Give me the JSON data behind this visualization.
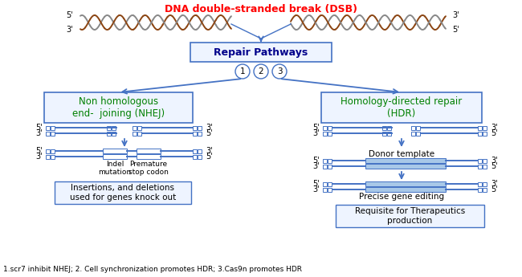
{
  "title": "DNA double-stranded break (DSB)",
  "title_color": "red",
  "background_color": "white",
  "box_color": "#4472C4",
  "nhej_label": "Non homologous\nend-  joining (NHEJ)",
  "hdr_label": "Homology-directed repair\n(HDR)",
  "repair_label": "Repair Pathways",
  "footnote": "1.scr7 inhibit NHEJ; 2. Cell synchronization promotes HDR; 3.Cas9n promotes HDR",
  "nhej_result": "Insertions, and deletions\nused for genes knock out",
  "hdr_result": "Requisite for Therapeutics\nproduction",
  "donor_label": "Donor template",
  "precise_label": "Precise gene editing",
  "indel_label": "Indel\nmutation",
  "premature_label": "Premature\nstop codon",
  "dna_brown": "#8B4513",
  "dna_gray": "#888888",
  "blue": "#4472C4",
  "green": "#008000"
}
